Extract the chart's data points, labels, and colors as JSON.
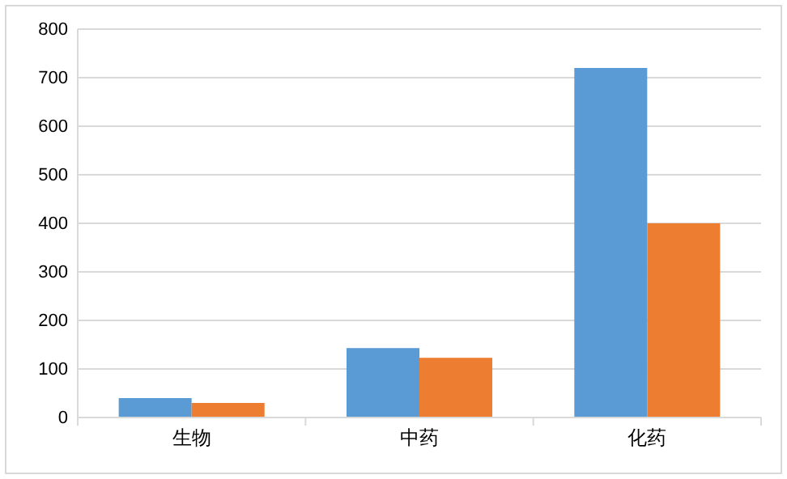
{
  "chart_data": {
    "type": "bar",
    "categories": [
      "生物",
      "中药",
      "化药"
    ],
    "series": [
      {
        "color": "#5b9bd5",
        "values": [
          40,
          143,
          720
        ]
      },
      {
        "color": "#ed7d31",
        "values": [
          30,
          123,
          400
        ]
      }
    ],
    "ylim": [
      0,
      800
    ],
    "yticks": [
      0,
      100,
      200,
      300,
      400,
      500,
      600,
      700,
      800
    ],
    "grid": "y"
  }
}
